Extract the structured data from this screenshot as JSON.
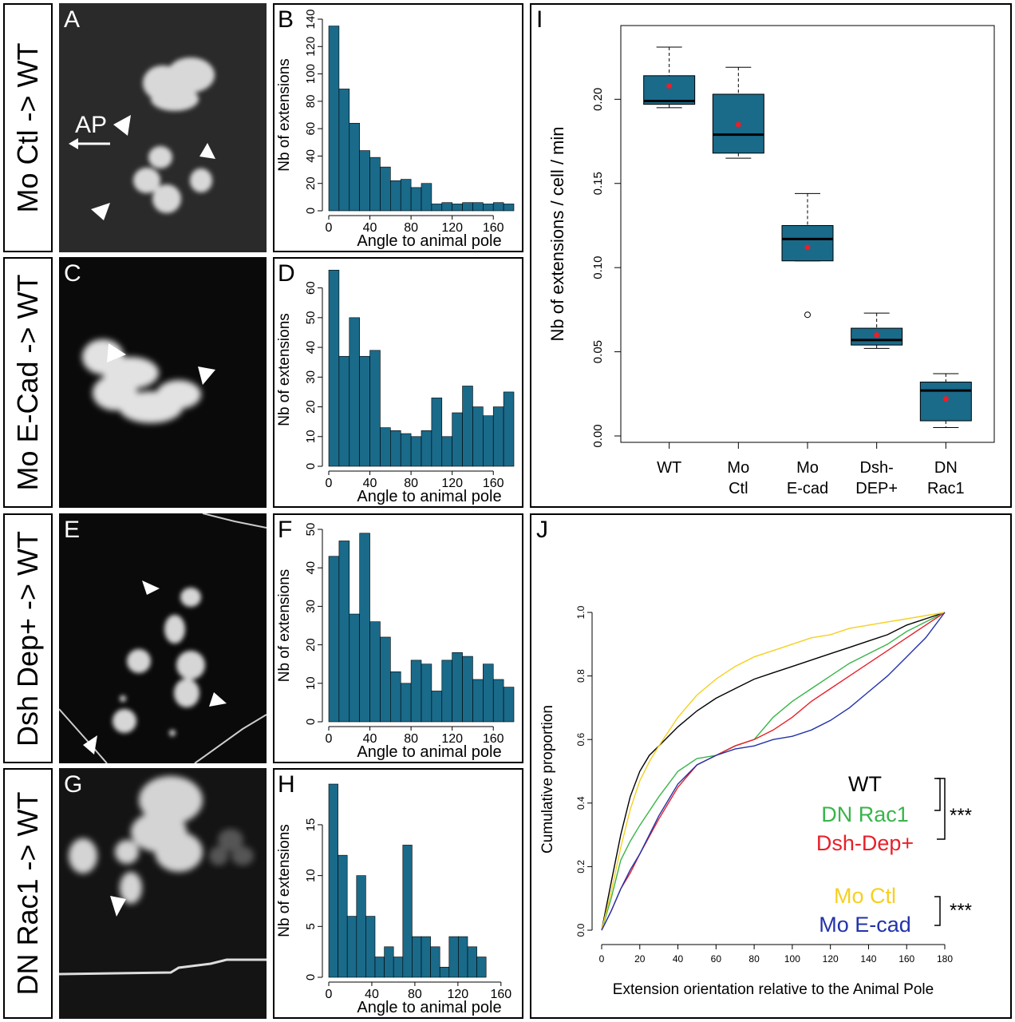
{
  "rows": [
    {
      "label": "Mo Ctl -> WT",
      "micro_letter": "A",
      "hist_letter": "B",
      "annotation": "AP"
    },
    {
      "label": "Mo E-Cad -> WT",
      "micro_letter": "C",
      "hist_letter": "D"
    },
    {
      "label": "Dsh Dep+ -> WT",
      "micro_letter": "E",
      "hist_letter": "F"
    },
    {
      "label": "DN Rac1 -> WT",
      "micro_letter": "G",
      "hist_letter": "H"
    }
  ],
  "panel_I_letter": "I",
  "panel_J_letter": "J",
  "colors": {
    "bar": "#1a6a8a",
    "mean_dot": "#e8202a"
  },
  "chart_data": [
    {
      "panel": "B",
      "type": "bar",
      "xlabel": "Angle to animal pole",
      "ylabel": "Nb of extensions",
      "bin_width": 10,
      "x_start": 0,
      "xlim": [
        0,
        180
      ],
      "ylim": [
        0,
        140
      ],
      "xticks": [
        0,
        40,
        80,
        120,
        160
      ],
      "yticks": [
        0,
        20,
        40,
        60,
        80,
        100,
        120,
        140
      ],
      "values": [
        135,
        89,
        64,
        44,
        39,
        32,
        22,
        23,
        17,
        20,
        5,
        6,
        5,
        6,
        6,
        5,
        6,
        5
      ]
    },
    {
      "panel": "D",
      "type": "bar",
      "xlabel": "Angle to animal pole",
      "ylabel": "Nb of extensions",
      "bin_width": 10,
      "x_start": 0,
      "xlim": [
        0,
        180
      ],
      "ylim": [
        0,
        65
      ],
      "xticks": [
        0,
        40,
        80,
        120,
        160
      ],
      "yticks": [
        0,
        10,
        20,
        30,
        40,
        50,
        60
      ],
      "values": [
        66,
        37,
        50,
        37,
        39,
        13,
        12,
        11,
        10,
        12,
        23,
        10,
        18,
        27,
        20,
        17,
        20,
        25
      ]
    },
    {
      "panel": "F",
      "type": "bar",
      "xlabel": "Angle to animal pole",
      "ylabel": "Nb of extensions",
      "bin_width": 10,
      "x_start": 0,
      "xlim": [
        0,
        180
      ],
      "ylim": [
        0,
        50
      ],
      "xticks": [
        0,
        40,
        80,
        120,
        160
      ],
      "yticks": [
        0,
        10,
        20,
        30,
        40,
        50
      ],
      "values": [
        43,
        47,
        28,
        49,
        26,
        22,
        13,
        10,
        16,
        15,
        8,
        16,
        18,
        17,
        11,
        15,
        11,
        9
      ]
    },
    {
      "panel": "H",
      "type": "bar",
      "xlabel": "Angle to animal pole",
      "ylabel": "Nb of extensions",
      "bin_width": 8.6,
      "x_start": 0,
      "xlim": [
        0,
        172
      ],
      "ylim": [
        0,
        19
      ],
      "xticks": [
        0,
        40,
        80,
        120,
        160
      ],
      "yticks": [
        0,
        5,
        10,
        15
      ],
      "values": [
        19,
        12,
        6,
        10,
        6,
        2,
        3,
        2,
        13,
        4,
        4,
        3,
        1,
        4,
        4,
        3,
        2
      ]
    },
    {
      "panel": "I",
      "type": "boxplot",
      "ylabel": "Nb of extensions / cell / min",
      "ylim": [
        0,
        0.24
      ],
      "yticks": [
        "0.00",
        "0.05",
        "0.10",
        "0.15",
        "0.20"
      ],
      "categories": [
        "WT",
        "Mo Ctl",
        "Mo E-cad",
        "Dsh-DEP+",
        "DN Rac1"
      ],
      "boxes": [
        {
          "whisker_low": 0.195,
          "q1": 0.197,
          "median": 0.199,
          "q3": 0.214,
          "whisker_high": 0.231,
          "mean": 0.208,
          "outliers": []
        },
        {
          "whisker_low": 0.165,
          "q1": 0.168,
          "median": 0.179,
          "q3": 0.203,
          "whisker_high": 0.219,
          "mean": 0.185,
          "outliers": []
        },
        {
          "whisker_low": 0.104,
          "q1": 0.104,
          "median": 0.117,
          "q3": 0.125,
          "whisker_high": 0.144,
          "mean": 0.112,
          "outliers": [
            0.072
          ]
        },
        {
          "whisker_low": 0.052,
          "q1": 0.054,
          "median": 0.057,
          "q3": 0.064,
          "whisker_high": 0.073,
          "mean": 0.06,
          "outliers": []
        },
        {
          "whisker_low": 0.005,
          "q1": 0.009,
          "median": 0.027,
          "q3": 0.032,
          "whisker_high": 0.037,
          "mean": 0.022,
          "outliers": []
        }
      ]
    },
    {
      "panel": "J",
      "type": "line",
      "xlabel": "Extension orientation relative to the Animal Pole",
      "ylabel": "Cumulative proportion",
      "xlim": [
        0,
        180
      ],
      "ylim": [
        0,
        1
      ],
      "xticks": [
        0,
        20,
        40,
        60,
        80,
        100,
        120,
        140,
        160,
        180
      ],
      "yticks": [
        "0.0",
        "0.2",
        "0.4",
        "0.6",
        "0.8",
        "1.0"
      ],
      "series": [
        {
          "name": "WT",
          "color": "#000000",
          "x": [
            0,
            5,
            10,
            15,
            20,
            25,
            30,
            40,
            50,
            60,
            70,
            80,
            90,
            100,
            110,
            120,
            130,
            140,
            150,
            160,
            170,
            180
          ],
          "y": [
            0,
            0.15,
            0.3,
            0.42,
            0.5,
            0.55,
            0.58,
            0.64,
            0.69,
            0.73,
            0.76,
            0.79,
            0.81,
            0.83,
            0.85,
            0.87,
            0.89,
            0.91,
            0.93,
            0.96,
            0.98,
            1.0
          ]
        },
        {
          "name": "DN Rac1",
          "color": "#39b54a",
          "x": [
            0,
            5,
            10,
            15,
            20,
            30,
            40,
            50,
            60,
            70,
            80,
            90,
            100,
            110,
            120,
            130,
            140,
            150,
            160,
            170,
            180
          ],
          "y": [
            0,
            0.1,
            0.22,
            0.28,
            0.33,
            0.42,
            0.5,
            0.54,
            0.55,
            0.58,
            0.6,
            0.67,
            0.72,
            0.76,
            0.8,
            0.84,
            0.87,
            0.9,
            0.94,
            0.97,
            1.0
          ]
        },
        {
          "name": "Dsh-Dep+",
          "color": "#e8202a",
          "x": [
            0,
            5,
            10,
            15,
            20,
            30,
            40,
            50,
            60,
            70,
            80,
            90,
            100,
            110,
            120,
            130,
            140,
            150,
            160,
            170,
            180
          ],
          "y": [
            0,
            0.06,
            0.13,
            0.18,
            0.24,
            0.35,
            0.45,
            0.52,
            0.55,
            0.58,
            0.6,
            0.63,
            0.67,
            0.72,
            0.76,
            0.8,
            0.84,
            0.88,
            0.92,
            0.96,
            1.0
          ]
        },
        {
          "name": "Mo Ctl",
          "color": "#f5d020",
          "x": [
            0,
            5,
            10,
            15,
            20,
            25,
            30,
            40,
            50,
            60,
            70,
            80,
            90,
            100,
            110,
            120,
            130,
            140,
            150,
            160,
            170,
            180
          ],
          "y": [
            0,
            0.12,
            0.26,
            0.38,
            0.47,
            0.53,
            0.58,
            0.67,
            0.74,
            0.79,
            0.83,
            0.86,
            0.88,
            0.9,
            0.92,
            0.93,
            0.95,
            0.96,
            0.97,
            0.98,
            0.99,
            1.0
          ]
        },
        {
          "name": "Mo E-cad",
          "color": "#2233aa",
          "x": [
            0,
            5,
            10,
            15,
            20,
            30,
            40,
            50,
            60,
            70,
            80,
            90,
            100,
            110,
            120,
            130,
            140,
            150,
            160,
            170,
            180
          ],
          "y": [
            0,
            0.06,
            0.13,
            0.19,
            0.24,
            0.36,
            0.46,
            0.52,
            0.55,
            0.57,
            0.58,
            0.6,
            0.61,
            0.63,
            0.66,
            0.7,
            0.75,
            0.8,
            0.86,
            0.92,
            1.0
          ]
        }
      ],
      "significance": [
        "***",
        "***"
      ]
    }
  ]
}
